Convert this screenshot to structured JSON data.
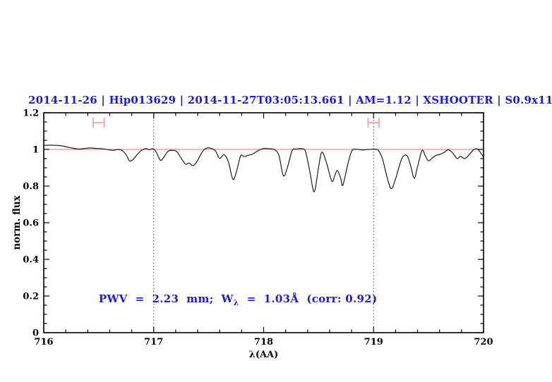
{
  "page": {
    "background": "#ffffff"
  },
  "chart_data": {
    "type": "line",
    "title": "2014-11-26 | Hip013629 | 2014-11-27T03:05:13.661 | AM=1.12 | XSHOOTER | S0.9x11",
    "xlabel": "λ(AA)",
    "ylabel": "norm. flux",
    "xlim": [
      716,
      720
    ],
    "ylim": [
      0,
      1.2
    ],
    "grid": false,
    "x_major_ticks": [
      716,
      717,
      718,
      719,
      720
    ],
    "x_tick_labels": [
      "716",
      "717",
      "718",
      "719",
      "720"
    ],
    "x_minor_step": 0.2,
    "y_major_ticks": [
      0,
      0.2,
      0.4,
      0.6,
      0.8,
      1,
      1.2
    ],
    "y_tick_labels": [
      "0",
      "0.2",
      "0.4",
      "0.6",
      "0.8",
      "1",
      "1.2"
    ],
    "y_minor_step": 0.05,
    "colors": {
      "text_blue": "#1a1ae0",
      "continuum_red": "#e87070",
      "marker_red": "#f2a2a2",
      "spectrum_black": "#1c1c1c",
      "axis_black": "#000000",
      "dotted_gray": "#444444"
    },
    "dotted_vlines": {
      "x": [
        717,
        719
      ]
    },
    "continuum_line": {
      "y": 1.0
    },
    "range_markers": {
      "y": 1.146,
      "items": [
        {
          "x_min": 716.45,
          "x_max": 716.55
        },
        {
          "x_min": 718.95,
          "x_max": 719.05
        }
      ]
    },
    "annotation": {
      "prefix": "PWV  =  2.23  mm;  W",
      "subscript": "λ",
      "suffix": "  =  1.03Å  (corr: 0.92)",
      "x": 716.5,
      "y": 0.185
    },
    "series": [
      {
        "name": "observed spectrum",
        "x": [
          716.0,
          716.06,
          716.12,
          716.17,
          716.22,
          716.27,
          716.32,
          716.36,
          716.41,
          716.46,
          716.51,
          716.55,
          716.59,
          716.63,
          716.67,
          716.71,
          716.75,
          716.78,
          716.81,
          716.85,
          716.89,
          716.93,
          716.96,
          716.99,
          717.02,
          717.06,
          717.09,
          717.13,
          717.17,
          717.21,
          717.25,
          717.29,
          717.32,
          717.36,
          717.4,
          717.44,
          717.48,
          717.52,
          717.56,
          717.6,
          717.64,
          717.68,
          717.72,
          717.75,
          717.79,
          717.82,
          717.86,
          717.9,
          717.95,
          718.0,
          718.05,
          718.1,
          718.14,
          718.18,
          718.22,
          718.26,
          718.3,
          718.34,
          718.38,
          718.42,
          718.46,
          718.5,
          718.53,
          718.57,
          718.62,
          718.65,
          718.67,
          718.7,
          718.72,
          718.76,
          718.8,
          718.84,
          718.89,
          718.94,
          718.99,
          719.04,
          719.08,
          719.12,
          719.16,
          719.2,
          719.25,
          719.28,
          719.31,
          719.34,
          719.37,
          719.4,
          719.44,
          719.47,
          719.5,
          719.54,
          719.57,
          719.6,
          719.64,
          719.68,
          719.72,
          719.76,
          719.79,
          719.83,
          719.87,
          719.91,
          719.94,
          719.97,
          720.0
        ],
        "y": [
          1.022,
          1.023,
          1.022,
          1.019,
          1.012,
          1.006,
          1.002,
          1.004,
          1.008,
          1.006,
          1.005,
          1.002,
          0.998,
          0.995,
          0.999,
          0.995,
          0.97,
          0.938,
          0.944,
          0.972,
          0.995,
          1.005,
          0.998,
          1.004,
          0.988,
          0.942,
          0.956,
          0.99,
          0.995,
          0.988,
          0.952,
          0.919,
          0.926,
          0.912,
          0.94,
          0.985,
          1.007,
          1.006,
          0.993,
          0.951,
          0.972,
          0.93,
          0.837,
          0.873,
          0.964,
          0.961,
          0.968,
          0.975,
          0.993,
          1.005,
          1.004,
          0.999,
          0.965,
          0.856,
          0.91,
          0.995,
          1.002,
          1.004,
          0.99,
          0.88,
          0.769,
          0.905,
          0.985,
          0.93,
          0.827,
          0.862,
          0.885,
          0.845,
          0.804,
          0.905,
          0.99,
          1.001,
          0.997,
          0.999,
          1.001,
          0.996,
          0.95,
          0.855,
          0.786,
          0.84,
          0.94,
          0.968,
          0.96,
          0.905,
          0.842,
          0.905,
          0.994,
          0.965,
          0.938,
          0.956,
          0.968,
          0.972,
          0.983,
          0.998,
          0.98,
          0.95,
          0.962,
          0.95,
          0.972,
          0.998,
          1.004,
          0.985,
          0.958
        ]
      }
    ]
  }
}
